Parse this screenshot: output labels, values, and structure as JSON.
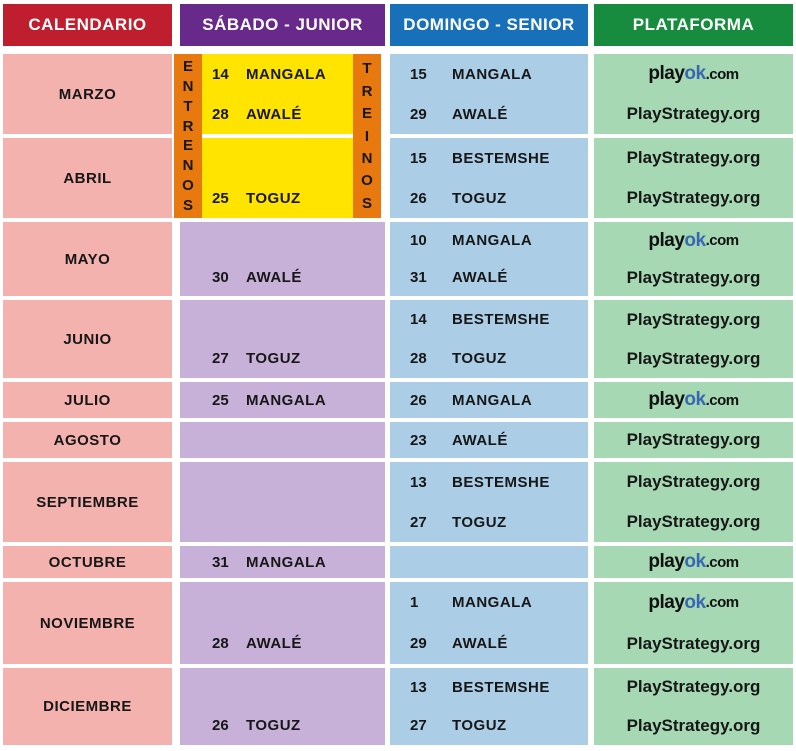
{
  "header": {
    "calendario": "CALENDARIO",
    "sabado_junior": "SÁBADO - JUNIOR",
    "domingo_senior": "DOMINGO - SENIOR",
    "plataforma": "PLATAFORMA"
  },
  "strips": {
    "left": "ENTRENOS",
    "right": "TREINOS"
  },
  "logos": {
    "playok": {
      "play": "play",
      "ok": "ok",
      "dotcom": ".com"
    },
    "playstrategy": "PlayStrategy.org"
  },
  "colors": {
    "calendario_header": "#BE1E2D",
    "calendario_cell": "#F4B2AE",
    "junior_header": "#67298A",
    "junior_cell": "#C7B1D8",
    "junior_highlight": "#FFE400",
    "strip_bg": "#E8790E",
    "senior_header": "#1871B8",
    "senior_cell": "#ACCDE6",
    "plataforma_header": "#188C3E",
    "plataforma_cell": "#A6D8B3",
    "empty_bar": "#8A8A8A",
    "playok_blue": "#3A67B1"
  },
  "rows": [
    {
      "month": "MARZO",
      "junior": [
        {
          "day": "14",
          "game": "MANGALA"
        },
        {
          "day": "28",
          "game": "AWALÉ"
        }
      ],
      "senior": [
        {
          "day": "15",
          "game": "MANGALA"
        },
        {
          "day": "29",
          "game": "AWALÉ"
        }
      ],
      "plataforma": [
        "playok.com",
        "PlayStrategy.org"
      ]
    },
    {
      "month": "ABRIL",
      "junior": [
        null,
        {
          "day": "25",
          "game": "TOGUZ"
        }
      ],
      "senior": [
        {
          "day": "15",
          "game": "BESTEMSHE"
        },
        {
          "day": "26",
          "game": "TOGUZ"
        }
      ],
      "plataforma": [
        "PlayStrategy.org",
        "PlayStrategy.org"
      ]
    },
    {
      "month": "MAYO",
      "junior": [
        null,
        {
          "day": "30",
          "game": "AWALÉ"
        }
      ],
      "senior": [
        {
          "day": "10",
          "game": "MANGALA"
        },
        {
          "day": "31",
          "game": "AWALÉ"
        }
      ],
      "plataforma": [
        "playok.com",
        "PlayStrategy.org"
      ]
    },
    {
      "month": "JUNIO",
      "junior": [
        null,
        {
          "day": "27",
          "game": "TOGUZ"
        }
      ],
      "senior": [
        {
          "day": "14",
          "game": "BESTEMSHE"
        },
        {
          "day": "28",
          "game": "TOGUZ"
        }
      ],
      "plataforma": [
        "PlayStrategy.org",
        "PlayStrategy.org"
      ]
    },
    {
      "month": "JULIO",
      "junior": [
        {
          "day": "25",
          "game": "MANGALA"
        }
      ],
      "senior": [
        {
          "day": "26",
          "game": "MANGALA"
        }
      ],
      "plataforma": [
        "playok.com"
      ]
    },
    {
      "month": "AGOSTO",
      "junior": [
        null
      ],
      "senior": [
        {
          "day": "23",
          "game": "AWALÉ"
        }
      ],
      "plataforma": [
        "PlayStrategy.org"
      ]
    },
    {
      "month": "SEPTIEMBRE",
      "junior": [
        null,
        null
      ],
      "senior": [
        {
          "day": "13",
          "game": "BESTEMSHE"
        },
        {
          "day": "27",
          "game": "TOGUZ"
        }
      ],
      "plataforma": [
        "PlayStrategy.org",
        "PlayStrategy.org"
      ]
    },
    {
      "month": "OCTUBRE",
      "junior": [
        {
          "day": "31",
          "game": "MANGALA"
        }
      ],
      "senior": [
        null
      ],
      "plataforma": [
        "playok.com"
      ]
    },
    {
      "month": "NOVIEMBRE",
      "junior": [
        null,
        {
          "day": "28",
          "game": "AWALÉ"
        }
      ],
      "senior": [
        {
          "day": "1",
          "game": "MANGALA"
        },
        {
          "day": "29",
          "game": "AWALÉ"
        }
      ],
      "plataforma": [
        "playok.com",
        "PlayStrategy.org"
      ]
    },
    {
      "month": "DICIEMBRE",
      "junior": [
        null,
        {
          "day": "26",
          "game": "TOGUZ"
        }
      ],
      "senior": [
        {
          "day": "13",
          "game": "BESTEMSHE"
        },
        {
          "day": "27",
          "game": "TOGUZ"
        }
      ],
      "plataforma": [
        "PlayStrategy.org",
        "PlayStrategy.org"
      ]
    }
  ]
}
